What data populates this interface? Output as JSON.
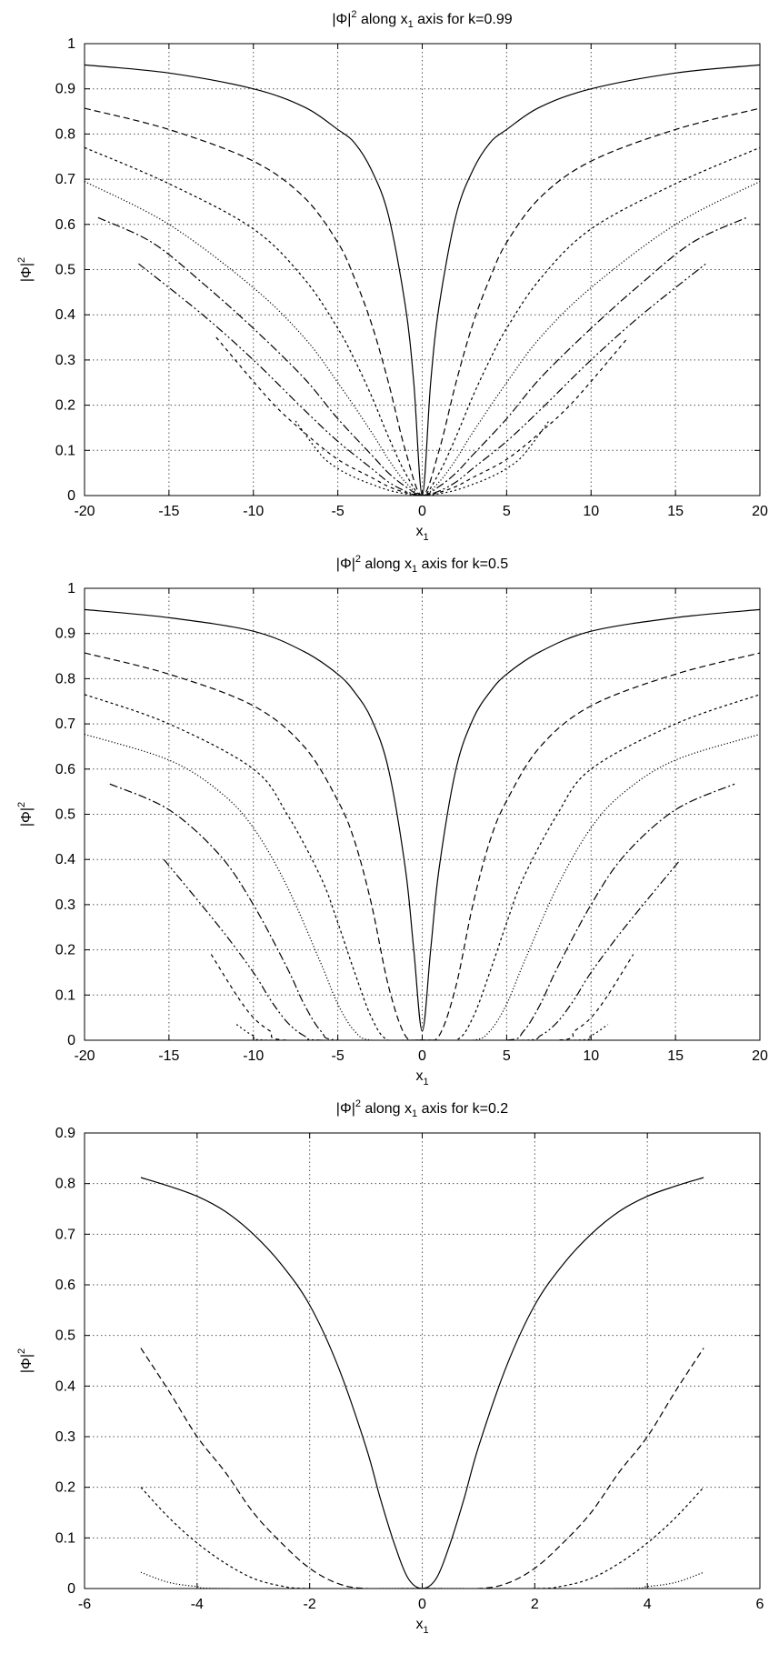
{
  "chart_data": [
    {
      "type": "line",
      "title": {
        "main": "|Φ|",
        "sup": "2",
        "mid": " along x",
        "sub": "1",
        "tail": " axis for k=0.99"
      },
      "xlabel": {
        "main": "x",
        "sub": "1"
      },
      "ylabel": {
        "main": "|Φ|",
        "sup": "2"
      },
      "xlim": [
        -20,
        20
      ],
      "ylim": [
        0,
        1
      ],
      "xticks": [
        "-20",
        "-15",
        "-10",
        "-5",
        "0",
        "5",
        "10",
        "15",
        "20"
      ],
      "yticks": [
        "0",
        "0.1",
        "0.2",
        "0.3",
        "0.4",
        "0.5",
        "0.6",
        "0.7",
        "0.8",
        "0.9",
        "1"
      ],
      "grid": true,
      "series": [
        {
          "style": "solid",
          "points": [
            [
              0,
              0
            ],
            [
              0.5,
              0.25
            ],
            [
              1,
              0.42
            ],
            [
              2,
              0.62
            ],
            [
              3,
              0.72
            ],
            [
              4,
              0.78
            ],
            [
              5,
              0.81
            ],
            [
              7,
              0.86
            ],
            [
              10,
              0.9
            ],
            [
              15,
              0.935
            ],
            [
              20,
              0.953
            ]
          ]
        },
        {
          "style": "dashed",
          "points": [
            [
              0,
              0
            ],
            [
              1,
              0.1
            ],
            [
              2,
              0.25
            ],
            [
              3,
              0.38
            ],
            [
              4,
              0.48
            ],
            [
              5,
              0.56
            ],
            [
              7,
              0.66
            ],
            [
              10,
              0.74
            ],
            [
              15,
              0.81
            ],
            [
              20,
              0.857
            ]
          ]
        },
        {
          "style": "short-dash",
          "points": [
            [
              0,
              0
            ],
            [
              1,
              0.05
            ],
            [
              2,
              0.13
            ],
            [
              3,
              0.22
            ],
            [
              4,
              0.3
            ],
            [
              5,
              0.37
            ],
            [
              7,
              0.48
            ],
            [
              10,
              0.59
            ],
            [
              15,
              0.69
            ],
            [
              20,
              0.77
            ]
          ]
        },
        {
          "style": "dotted",
          "points": [
            [
              0,
              0
            ],
            [
              1,
              0.03
            ],
            [
              2,
              0.08
            ],
            [
              3,
              0.14
            ],
            [
              5,
              0.25
            ],
            [
              7,
              0.35
            ],
            [
              10,
              0.46
            ],
            [
              15,
              0.6
            ],
            [
              20,
              0.695
            ]
          ]
        },
        {
          "style": "dash-dot",
          "points": [
            [
              0,
              0
            ],
            [
              1,
              0.02
            ],
            [
              2,
              0.05
            ],
            [
              3,
              0.09
            ],
            [
              5,
              0.17
            ],
            [
              7,
              0.26
            ],
            [
              10,
              0.37
            ],
            [
              13,
              0.47
            ],
            [
              16,
              0.56
            ],
            [
              19.2,
              0.615
            ]
          ]
        },
        {
          "style": "dash-dot-dot",
          "points": [
            [
              0,
              0
            ],
            [
              1,
              0.01
            ],
            [
              2,
              0.03
            ],
            [
              3,
              0.06
            ],
            [
              5,
              0.12
            ],
            [
              7,
              0.19
            ],
            [
              10,
              0.3
            ],
            [
              13,
              0.4
            ],
            [
              16.8,
              0.513
            ]
          ]
        },
        {
          "style": "sparse-dash",
          "points": [
            [
              0,
              0
            ],
            [
              1,
              0.007
            ],
            [
              2,
              0.02
            ],
            [
              3,
              0.04
            ],
            [
              5,
              0.08
            ],
            [
              7,
              0.14
            ],
            [
              9,
              0.21
            ],
            [
              12.2,
              0.35
            ]
          ]
        },
        {
          "style": "fine-dash",
          "points": [
            [
              0,
              0
            ],
            [
              1,
              0.004
            ],
            [
              2,
              0.012
            ],
            [
              3,
              0.025
            ],
            [
              4,
              0.04
            ],
            [
              5,
              0.06
            ],
            [
              6,
              0.09
            ],
            [
              7.5,
              0.165
            ]
          ]
        }
      ]
    },
    {
      "type": "line",
      "title": {
        "main": "|Φ|",
        "sup": "2",
        "mid": " along x",
        "sub": "1",
        "tail": " axis for k=0.5"
      },
      "xlabel": {
        "main": "x",
        "sub": "1"
      },
      "ylabel": {
        "main": "|Φ|",
        "sup": "2"
      },
      "xlim": [
        -20,
        20
      ],
      "ylim": [
        0,
        1
      ],
      "xticks": [
        "-20",
        "-15",
        "-10",
        "-5",
        "0",
        "5",
        "10",
        "15",
        "20"
      ],
      "yticks": [
        "0",
        "0.1",
        "0.2",
        "0.3",
        "0.4",
        "0.5",
        "0.6",
        "0.7",
        "0.8",
        "0.9",
        "1"
      ],
      "grid": true,
      "series": [
        {
          "style": "solid",
          "points": [
            [
              0,
              0.02
            ],
            [
              0.5,
              0.2
            ],
            [
              1,
              0.38
            ],
            [
              2,
              0.6
            ],
            [
              3,
              0.71
            ],
            [
              4,
              0.77
            ],
            [
              5,
              0.81
            ],
            [
              7,
              0.86
            ],
            [
              10,
              0.905
            ],
            [
              15,
              0.935
            ],
            [
              20,
              0.953
            ]
          ]
        },
        {
          "style": "dashed",
          "points": [
            [
              0,
              0
            ],
            [
              1,
              0.01
            ],
            [
              2,
              0.12
            ],
            [
              3,
              0.3
            ],
            [
              4,
              0.44
            ],
            [
              5,
              0.53
            ],
            [
              7,
              0.65
            ],
            [
              10,
              0.74
            ],
            [
              15,
              0.81
            ],
            [
              20,
              0.857
            ]
          ]
        },
        {
          "style": "short-dash",
          "points": [
            [
              0,
              0
            ],
            [
              2,
              0
            ],
            [
              3,
              0.05
            ],
            [
              4,
              0.15
            ],
            [
              5,
              0.26
            ],
            [
              6,
              0.36
            ],
            [
              8,
              0.5
            ],
            [
              10,
              0.6
            ],
            [
              15,
              0.7
            ],
            [
              20,
              0.765
            ]
          ]
        },
        {
          "style": "dotted",
          "points": [
            [
              0,
              0
            ],
            [
              3,
              0
            ],
            [
              4,
              0.02
            ],
            [
              5,
              0.08
            ],
            [
              6,
              0.17
            ],
            [
              8,
              0.34
            ],
            [
              10,
              0.47
            ],
            [
              12,
              0.55
            ],
            [
              15,
              0.62
            ],
            [
              20,
              0.677
            ]
          ]
        },
        {
          "style": "dash-dot",
          "points": [
            [
              0,
              0
            ],
            [
              5,
              0
            ],
            [
              6,
              0.02
            ],
            [
              7,
              0.08
            ],
            [
              8,
              0.16
            ],
            [
              10,
              0.3
            ],
            [
              12,
              0.41
            ],
            [
              15,
              0.51
            ],
            [
              18.5,
              0.567
            ]
          ]
        },
        {
          "style": "dash-dot-dot",
          "points": [
            [
              0,
              0
            ],
            [
              6,
              0
            ],
            [
              7,
              0.01
            ],
            [
              8,
              0.04
            ],
            [
              9,
              0.09
            ],
            [
              10,
              0.15
            ],
            [
              12,
              0.25
            ],
            [
              15.3,
              0.4
            ]
          ]
        },
        {
          "style": "sparse-dash",
          "points": [
            [
              0,
              0
            ],
            [
              8,
              0
            ],
            [
              9,
              0.02
            ],
            [
              10,
              0.05
            ],
            [
              11,
              0.1
            ],
            [
              12.5,
              0.19
            ]
          ]
        },
        {
          "style": "fine-dash",
          "points": [
            [
              0,
              0
            ],
            [
              9,
              0
            ],
            [
              10,
              0.01
            ],
            [
              11,
              0.035
            ]
          ]
        }
      ]
    },
    {
      "type": "line",
      "title": {
        "main": "|Φ|",
        "sup": "2",
        "mid": " along x",
        "sub": "1",
        "tail": " axis for k=0.2"
      },
      "xlabel": {
        "main": "x",
        "sub": "1"
      },
      "ylabel": {
        "main": "|Φ|",
        "sup": "2"
      },
      "xlim": [
        -6,
        6
      ],
      "ylim": [
        0,
        0.9
      ],
      "xticks": [
        "-6",
        "-4",
        "-2",
        "0",
        "2",
        "4",
        "6"
      ],
      "yticks": [
        "0",
        "0.1",
        "0.2",
        "0.3",
        "0.4",
        "0.5",
        "0.6",
        "0.7",
        "0.8",
        "0.9"
      ],
      "grid": true,
      "series": [
        {
          "style": "solid",
          "points": [
            [
              0,
              0
            ],
            [
              0.25,
              0.02
            ],
            [
              0.5,
              0.09
            ],
            [
              0.75,
              0.18
            ],
            [
              1,
              0.28
            ],
            [
              1.5,
              0.44
            ],
            [
              2,
              0.56
            ],
            [
              2.5,
              0.64
            ],
            [
              3,
              0.7
            ],
            [
              3.5,
              0.745
            ],
            [
              4,
              0.775
            ],
            [
              4.5,
              0.795
            ],
            [
              5,
              0.812
            ]
          ]
        },
        {
          "style": "dashed",
          "points": [
            [
              0,
              0
            ],
            [
              1,
              0
            ],
            [
              1.5,
              0.01
            ],
            [
              2,
              0.04
            ],
            [
              2.5,
              0.09
            ],
            [
              3,
              0.15
            ],
            [
              3.5,
              0.23
            ],
            [
              4,
              0.3
            ],
            [
              4.5,
              0.39
            ],
            [
              5,
              0.475
            ]
          ]
        },
        {
          "style": "short-dash",
          "points": [
            [
              0,
              0
            ],
            [
              2,
              0
            ],
            [
              2.5,
              0.005
            ],
            [
              3,
              0.02
            ],
            [
              3.5,
              0.05
            ],
            [
              4,
              0.09
            ],
            [
              4.5,
              0.14
            ],
            [
              5,
              0.2
            ]
          ]
        },
        {
          "style": "dotted",
          "points": [
            [
              0,
              0
            ],
            [
              3.5,
              0
            ],
            [
              4,
              0.004
            ],
            [
              4.5,
              0.012
            ],
            [
              5,
              0.032
            ]
          ]
        }
      ]
    }
  ]
}
